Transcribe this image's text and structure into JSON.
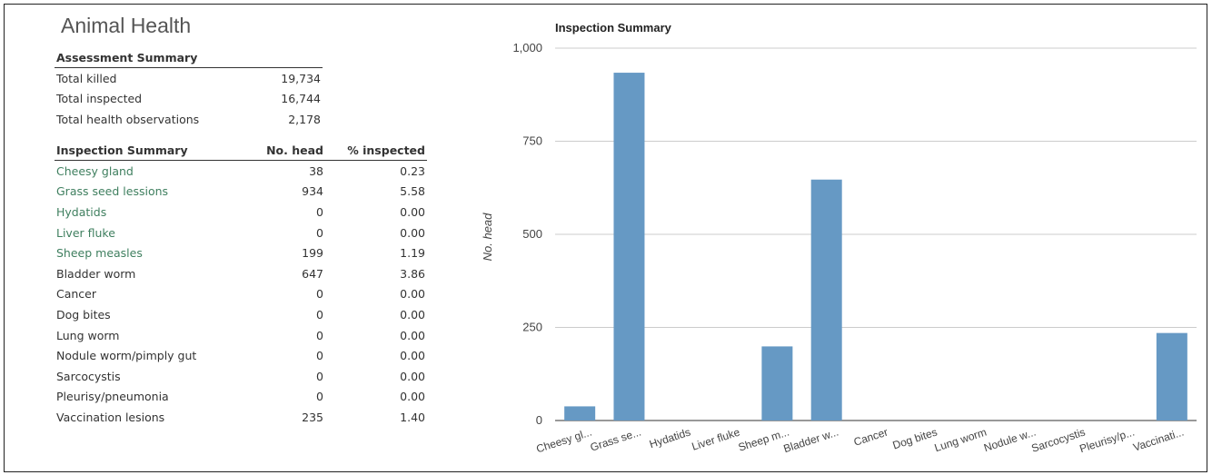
{
  "panel_title": "Animal Health",
  "assessment": {
    "header": "Assessment Summary",
    "rows": [
      {
        "label": "Total killed",
        "value": "19,734"
      },
      {
        "label": "Total inspected",
        "value": "16,744"
      },
      {
        "label": "Total health observations",
        "value": "2,178"
      }
    ]
  },
  "inspection": {
    "headers": [
      "Inspection Summary",
      "No. head",
      "% inspected"
    ],
    "rows": [
      {
        "label": "Cheesy gland",
        "head": "38",
        "pct": "0.23",
        "link": true
      },
      {
        "label": "Grass seed lessions",
        "head": "934",
        "pct": "5.58",
        "link": true
      },
      {
        "label": "Hydatids",
        "head": "0",
        "pct": "0.00",
        "link": true
      },
      {
        "label": "Liver fluke",
        "head": "0",
        "pct": "0.00",
        "link": true
      },
      {
        "label": "Sheep measles",
        "head": "199",
        "pct": "1.19",
        "link": true
      },
      {
        "label": "Bladder worm",
        "head": "647",
        "pct": "3.86",
        "link": false
      },
      {
        "label": "Cancer",
        "head": "0",
        "pct": "0.00",
        "link": false
      },
      {
        "label": "Dog bites",
        "head": "0",
        "pct": "0.00",
        "link": false
      },
      {
        "label": "Lung worm",
        "head": "0",
        "pct": "0.00",
        "link": false
      },
      {
        "label": "Nodule worm/pimply gut",
        "head": "0",
        "pct": "0.00",
        "link": false
      },
      {
        "label": "Sarcocystis",
        "head": "0",
        "pct": "0.00",
        "link": false
      },
      {
        "label": "Pleurisy/pneumonia",
        "head": "0",
        "pct": "0.00",
        "link": false
      },
      {
        "label": "Vaccination lesions",
        "head": "235",
        "pct": "1.40",
        "link": false
      }
    ]
  },
  "colors": {
    "bar": "#6699c4",
    "link": "#3f7f5f",
    "grid": "#cccccc"
  },
  "chart_data": {
    "type": "bar",
    "title": "Inspection Summary",
    "xlabel": "",
    "ylabel": "No. head",
    "ylim": [
      0,
      1000
    ],
    "yticks": [
      0,
      250,
      500,
      750,
      1000
    ],
    "ytick_labels": [
      "0",
      "250",
      "500",
      "750",
      "1,000"
    ],
    "grid": true,
    "categories": [
      "Cheesy gl...",
      "Grass se...",
      "Hydatids",
      "Liver fluke",
      "Sheep m...",
      "Bladder w...",
      "Cancer",
      "Dog bites",
      "Lung worm",
      "Nodule w...",
      "Sarcocystis",
      "Pleurisy/p...",
      "Vaccinati..."
    ],
    "values": [
      38,
      934,
      0,
      0,
      199,
      647,
      0,
      0,
      0,
      0,
      0,
      0,
      235
    ]
  }
}
